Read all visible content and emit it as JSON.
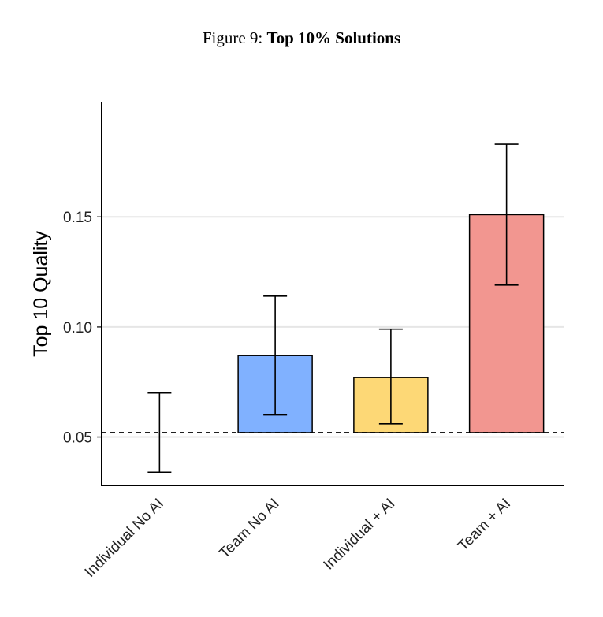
{
  "figure": {
    "prefix": "Figure 9: ",
    "title": "Top 10% Solutions"
  },
  "chart_data": {
    "type": "bar",
    "title": "Top 10% Solutions",
    "xlabel": "",
    "ylabel": "Top 10 Quality",
    "ylim": [
      0.028,
      0.202
    ],
    "yticks": [
      0.05,
      0.1,
      0.15
    ],
    "ytick_labels": [
      "0.05",
      "0.10",
      "0.15"
    ],
    "baseline": 0.052,
    "baseline_style": "dashed",
    "grid": "horizontal",
    "categories": [
      "Individual No AI",
      "Team No AI",
      "Individual + AI",
      "Team + AI"
    ],
    "values": [
      0.052,
      0.087,
      0.077,
      0.151
    ],
    "error_low": [
      0.034,
      0.06,
      0.056,
      0.119
    ],
    "error_high": [
      0.07,
      0.114,
      0.099,
      0.183
    ],
    "colors": [
      "#ffffff",
      "#80b1ff",
      "#fdd876",
      "#f29690"
    ]
  }
}
